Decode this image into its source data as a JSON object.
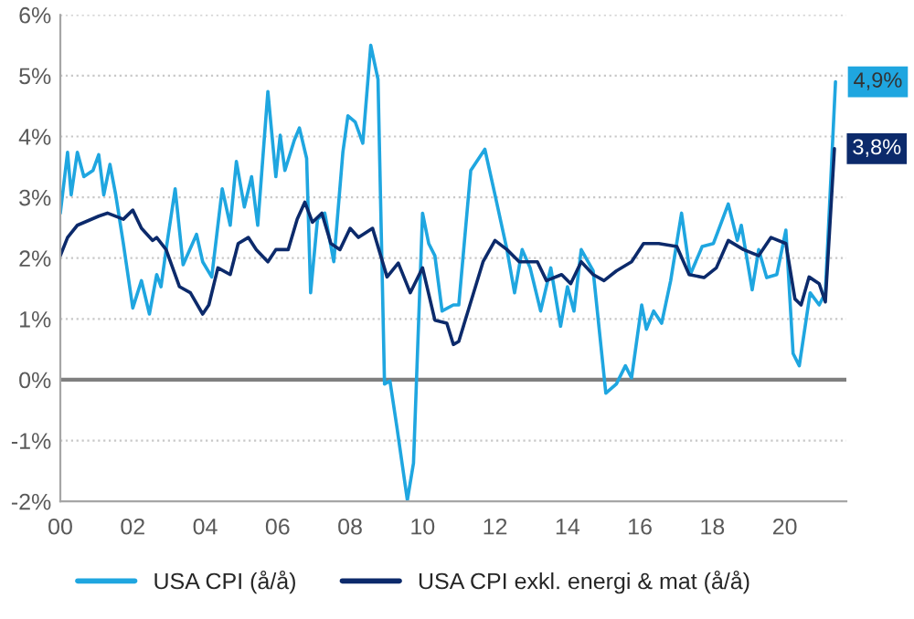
{
  "chart_data": {
    "type": "line",
    "xlim": [
      2000,
      2021.7
    ],
    "xticks": [
      {
        "value": 2000,
        "label": "00"
      },
      {
        "value": 2002,
        "label": "02"
      },
      {
        "value": 2004,
        "label": "04"
      },
      {
        "value": 2006,
        "label": "06"
      },
      {
        "value": 2008,
        "label": "08"
      },
      {
        "value": 2010,
        "label": "10"
      },
      {
        "value": 2012,
        "label": "12"
      },
      {
        "value": 2014,
        "label": "14"
      },
      {
        "value": 2016,
        "label": "16"
      },
      {
        "value": 2018,
        "label": "18"
      },
      {
        "value": 2020,
        "label": "20"
      }
    ],
    "ylim": [
      -2,
      6
    ],
    "yticks": [
      {
        "value": -2,
        "label": "-2%"
      },
      {
        "value": -1,
        "label": "-1%"
      },
      {
        "value": 0,
        "label": "0%"
      },
      {
        "value": 1,
        "label": "1%"
      },
      {
        "value": 2,
        "label": "2%"
      },
      {
        "value": 3,
        "label": "3%"
      },
      {
        "value": 4,
        "label": "4%"
      },
      {
        "value": 5,
        "label": "5%"
      },
      {
        "value": 6,
        "label": "6%"
      }
    ],
    "grid": "y",
    "legend": "bottom",
    "marker": "none",
    "line_style": "solid",
    "ref_lines": [
      {
        "axis": "y",
        "value": 0,
        "color": "#7f7f7f"
      }
    ],
    "annotations": [
      {
        "text": "4,9%",
        "x": 2021.4,
        "y": 4.9
      },
      {
        "text": "3,8%",
        "x": 2021.37,
        "y": 3.8
      }
    ],
    "series": [
      {
        "name": "USA CPI (å/å)",
        "color": "#1fa6e0",
        "x": [
          2000.0,
          2000.2,
          2000.3,
          2000.47,
          2000.65,
          2000.9,
          2001.06,
          2001.2,
          2001.37,
          2001.53,
          2001.74,
          2002.0,
          2002.24,
          2002.46,
          2002.66,
          2002.78,
          2002.92,
          2003.17,
          2003.39,
          2003.76,
          2003.93,
          2004.18,
          2004.47,
          2004.69,
          2004.86,
          2005.08,
          2005.28,
          2005.45,
          2005.73,
          2005.95,
          2006.07,
          2006.2,
          2006.46,
          2006.6,
          2006.8,
          2006.91,
          2007.1,
          2007.3,
          2007.55,
          2007.8,
          2007.94,
          2008.14,
          2008.35,
          2008.57,
          2008.77,
          2008.95,
          2009.1,
          2009.29,
          2009.58,
          2009.75,
          2010.0,
          2010.17,
          2010.34,
          2010.54,
          2010.85,
          2011.0,
          2011.33,
          2011.72,
          2012.0,
          2012.33,
          2012.54,
          2012.75,
          2012.97,
          2013.26,
          2013.54,
          2013.81,
          2014.0,
          2014.18,
          2014.38,
          2014.71,
          2015.06,
          2015.35,
          2015.6,
          2015.77,
          2016.05,
          2016.18,
          2016.38,
          2016.6,
          2016.85,
          2017.15,
          2017.39,
          2017.72,
          2018.03,
          2018.44,
          2018.69,
          2018.8,
          2019.1,
          2019.28,
          2019.5,
          2019.78,
          2020.03,
          2020.23,
          2020.4,
          2020.7,
          2020.95,
          2021.12,
          2021.4
        ],
        "values": [
          2.74,
          3.74,
          3.04,
          3.74,
          3.34,
          3.44,
          3.7,
          3.04,
          3.54,
          3.04,
          2.24,
          1.18,
          1.63,
          1.08,
          1.73,
          1.53,
          2.14,
          3.14,
          1.89,
          2.39,
          1.94,
          1.69,
          3.14,
          2.54,
          3.59,
          2.84,
          3.34,
          2.54,
          4.74,
          3.34,
          4.02,
          3.44,
          3.94,
          4.14,
          3.64,
          1.43,
          2.64,
          2.74,
          1.94,
          3.74,
          4.34,
          4.24,
          3.89,
          5.5,
          4.94,
          -0.07,
          -0.02,
          -0.77,
          -1.98,
          -1.37,
          2.74,
          2.24,
          2.04,
          1.13,
          1.23,
          1.23,
          3.44,
          3.79,
          3.04,
          2.14,
          1.43,
          2.14,
          1.84,
          1.13,
          1.84,
          0.88,
          1.53,
          1.13,
          2.14,
          1.79,
          -0.22,
          -0.07,
          0.23,
          0.03,
          1.23,
          0.83,
          1.13,
          0.93,
          1.63,
          2.74,
          1.73,
          2.19,
          2.24,
          2.89,
          2.29,
          2.54,
          1.48,
          2.14,
          1.68,
          1.73,
          2.46,
          0.43,
          0.23,
          1.43,
          1.23,
          1.43,
          4.9
        ]
      },
      {
        "name": "USA CPI exkl. energi & mat (å/å)",
        "color": "#0c2a6b",
        "x": [
          2000.0,
          2000.2,
          2000.47,
          2001.06,
          2001.3,
          2001.74,
          2002.0,
          2002.24,
          2002.55,
          2002.66,
          2002.92,
          2003.29,
          2003.59,
          2003.93,
          2004.1,
          2004.35,
          2004.69,
          2004.91,
          2005.19,
          2005.41,
          2005.73,
          2005.95,
          2006.29,
          2006.54,
          2006.75,
          2006.96,
          2007.22,
          2007.47,
          2007.72,
          2008.0,
          2008.23,
          2008.62,
          2009.02,
          2009.33,
          2009.66,
          2010.0,
          2010.34,
          2010.67,
          2010.85,
          2011.0,
          2011.67,
          2012.0,
          2012.33,
          2012.67,
          2013.17,
          2013.42,
          2013.84,
          2014.09,
          2014.38,
          2014.71,
          2015.01,
          2015.35,
          2015.77,
          2016.1,
          2016.52,
          2017.02,
          2017.36,
          2017.77,
          2018.11,
          2018.44,
          2018.86,
          2019.28,
          2019.62,
          2020.03,
          2020.28,
          2020.45,
          2020.67,
          2020.95,
          2021.12,
          2021.37
        ],
        "values": [
          2.04,
          2.34,
          2.54,
          2.69,
          2.74,
          2.64,
          2.79,
          2.49,
          2.29,
          2.34,
          2.14,
          1.53,
          1.43,
          1.08,
          1.23,
          1.84,
          1.73,
          2.24,
          2.34,
          2.14,
          1.94,
          2.14,
          2.14,
          2.64,
          2.92,
          2.59,
          2.74,
          2.24,
          2.14,
          2.49,
          2.34,
          2.49,
          1.69,
          1.92,
          1.43,
          1.84,
          0.98,
          0.93,
          0.58,
          0.63,
          1.94,
          2.29,
          2.14,
          1.94,
          1.94,
          1.63,
          1.73,
          1.58,
          1.94,
          1.73,
          1.63,
          1.79,
          1.94,
          2.24,
          2.24,
          2.19,
          1.73,
          1.68,
          1.84,
          2.29,
          2.14,
          2.04,
          2.34,
          2.24,
          1.33,
          1.23,
          1.69,
          1.58,
          1.28,
          3.8
        ]
      }
    ]
  }
}
